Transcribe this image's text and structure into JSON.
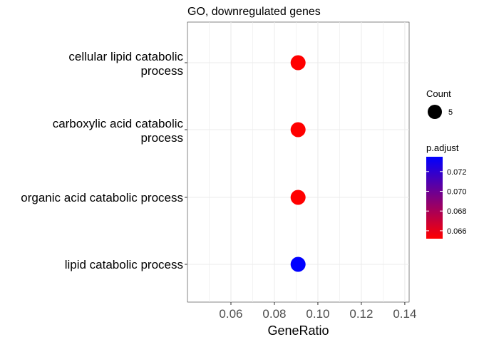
{
  "chart_data": {
    "type": "scatter",
    "title": "GO, downregulated genes",
    "xlabel": "GeneRatio",
    "ylabel": "",
    "xlim": [
      0.04,
      0.142
    ],
    "x_ticks": [
      0.06,
      0.08,
      0.1,
      0.12,
      0.14
    ],
    "x_tick_labels": [
      "0.06",
      "0.08",
      "0.10",
      "0.12",
      "0.14"
    ],
    "categories": [
      "cellular lipid catabolic process",
      "carboxylic acid catabolic process",
      "organic acid catabolic process",
      "lipid catabolic process"
    ],
    "category_labels": [
      [
        "cellular lipid catabolic",
        "process"
      ],
      [
        "carboxylic acid catabolic",
        "process"
      ],
      [
        "organic acid catabolic process"
      ],
      [
        "lipid catabolic process"
      ]
    ],
    "points": [
      {
        "category": "cellular lipid catabolic process",
        "x": 0.0909,
        "count": 5,
        "p_adjust": 0.0652
      },
      {
        "category": "carboxylic acid catabolic process",
        "x": 0.0909,
        "count": 5,
        "p_adjust": 0.0652
      },
      {
        "category": "organic acid catabolic process",
        "x": 0.0909,
        "count": 5,
        "p_adjust": 0.0652
      },
      {
        "category": "lipid catabolic process",
        "x": 0.0909,
        "count": 5,
        "p_adjust": 0.0735
      }
    ],
    "grid": true,
    "legend": {
      "placement": "right",
      "size": {
        "title": "Count",
        "entries": [
          {
            "label": "5",
            "value": 5
          }
        ]
      },
      "color": {
        "title": "p.adjust",
        "min": 0.0652,
        "max": 0.0735,
        "low_color": "#ff0000",
        "high_color": "#0000ff",
        "ticks": [
          0.066,
          0.068,
          0.07,
          0.072
        ],
        "tick_labels": [
          "0.066",
          "0.068",
          "0.070",
          "0.072"
        ]
      }
    }
  }
}
